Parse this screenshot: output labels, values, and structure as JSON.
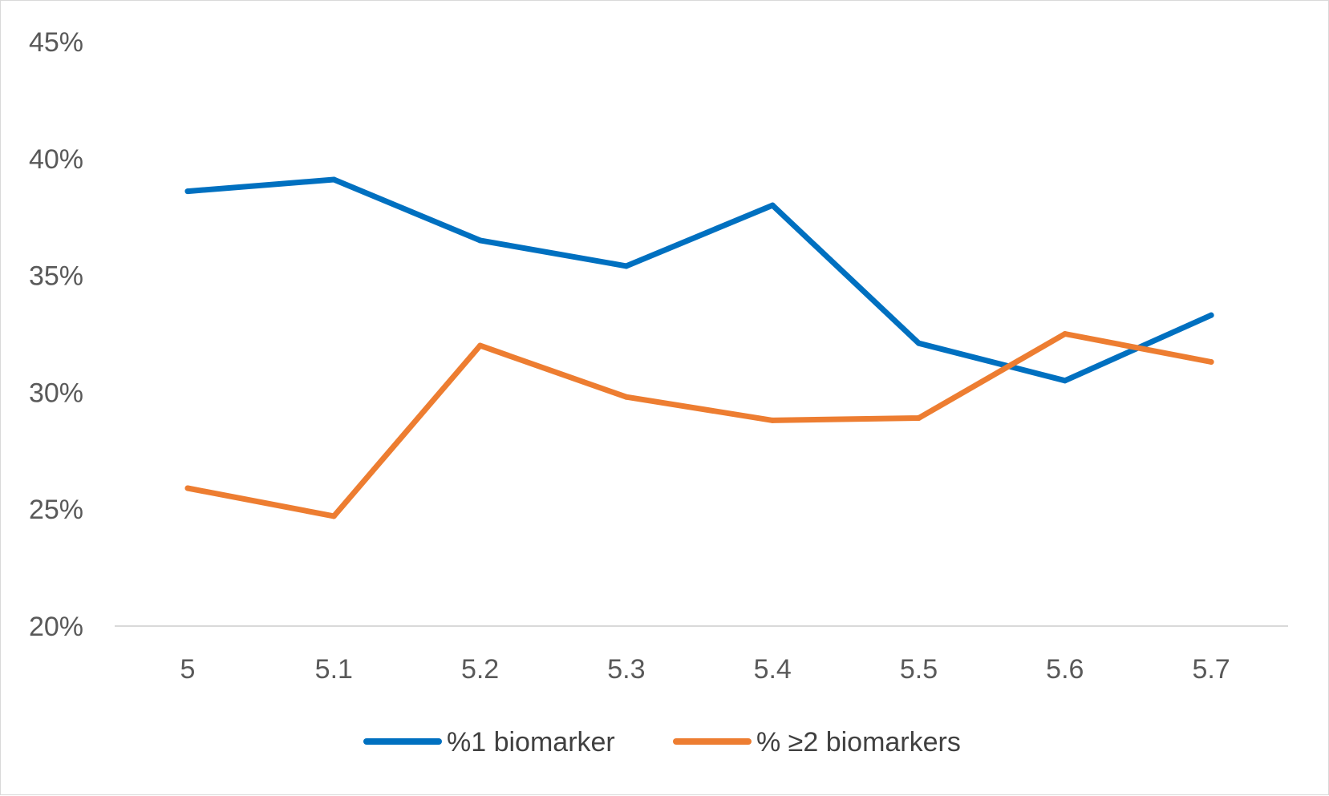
{
  "chart_data": {
    "type": "line",
    "title": "",
    "xlabel": "",
    "ylabel": "",
    "categories": [
      "5",
      "5.1",
      "5.2",
      "5.3",
      "5.4",
      "5.5",
      "5.6",
      "5.7"
    ],
    "ylim": [
      0.2,
      0.45
    ],
    "yticks": [
      {
        "value": 0.2,
        "label": "20%"
      },
      {
        "value": 0.25,
        "label": "25%"
      },
      {
        "value": 0.3,
        "label": "30%"
      },
      {
        "value": 0.35,
        "label": "35%"
      },
      {
        "value": 0.4,
        "label": "40%"
      },
      {
        "value": 0.45,
        "label": "45%"
      }
    ],
    "grid": false,
    "legend_position": "bottom",
    "series": [
      {
        "name": "%1 biomarker",
        "color": "#0070C0",
        "values": [
          0.386,
          0.391,
          0.365,
          0.354,
          0.38,
          0.321,
          0.305,
          0.333
        ]
      },
      {
        "name": "% ≥2 biomarkers",
        "color": "#ED7D31",
        "values": [
          0.259,
          0.247,
          0.32,
          0.298,
          0.288,
          0.289,
          0.325,
          0.313
        ]
      }
    ]
  }
}
